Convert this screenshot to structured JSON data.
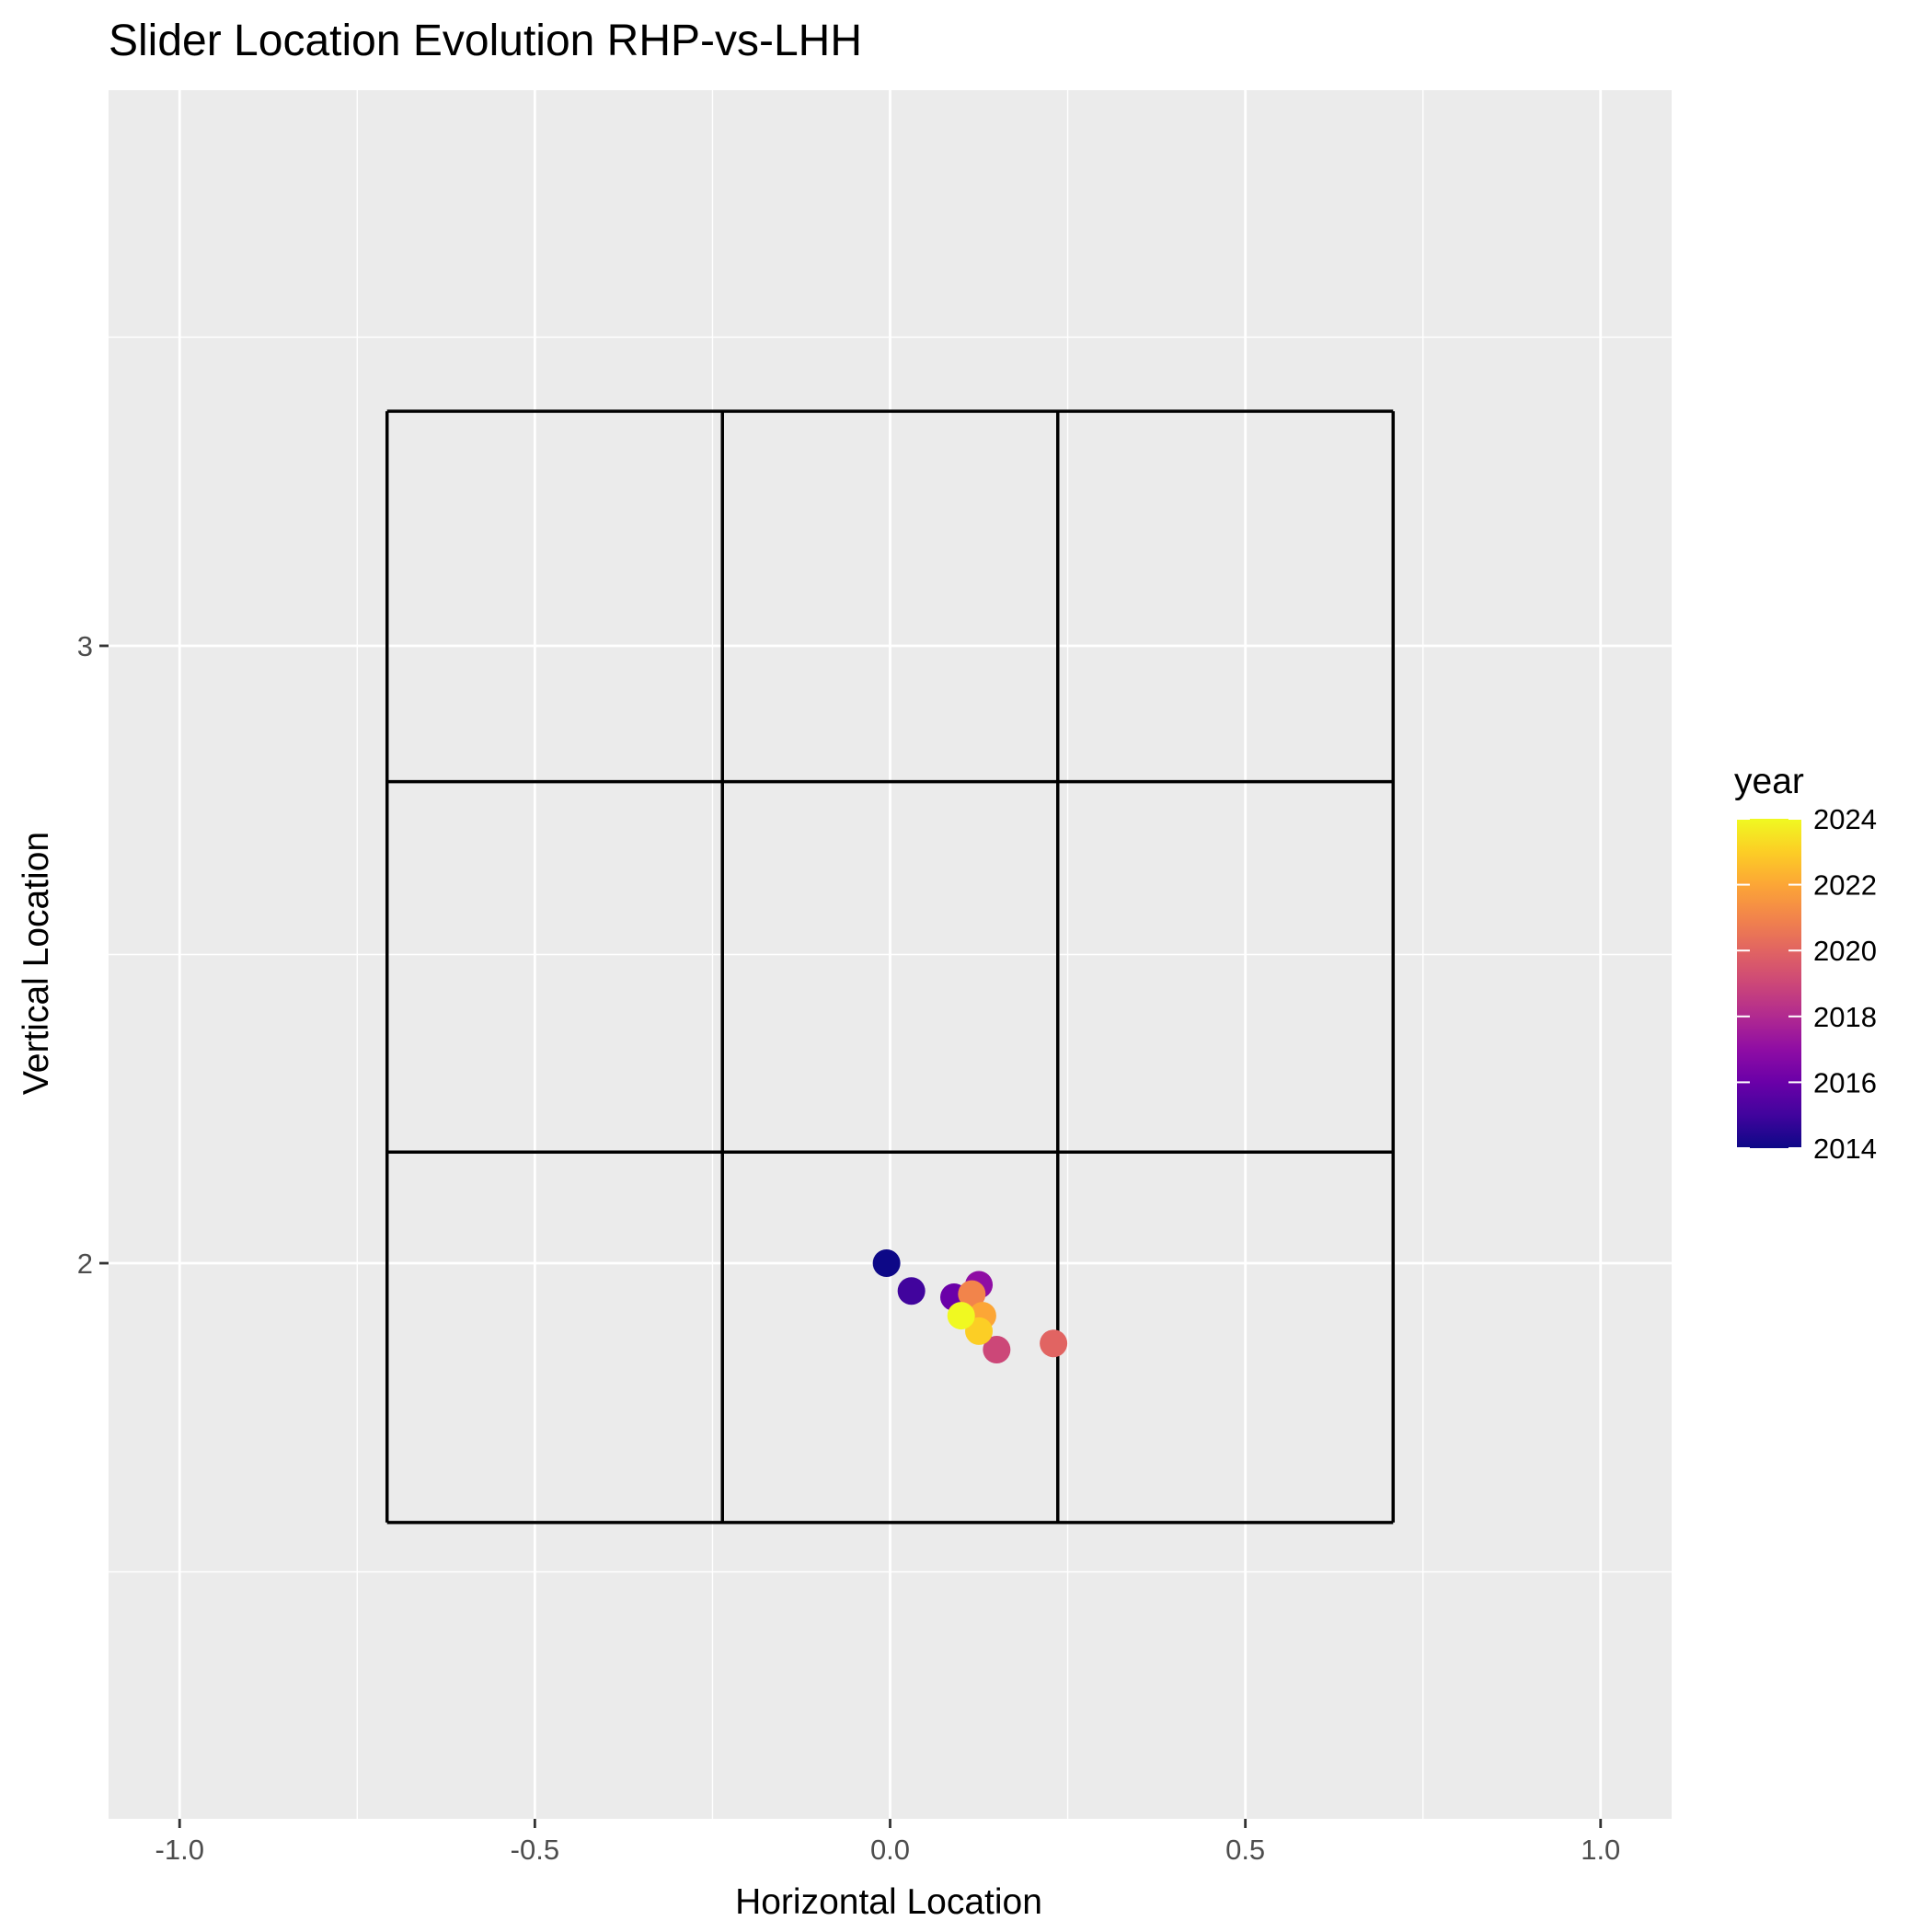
{
  "chart_data": {
    "type": "scatter",
    "title": "Slider Location Evolution RHP-vs-LHH",
    "xlabel": "Horizontal Location",
    "ylabel": "Vertical Location",
    "xlim": [
      -1.1,
      1.1
    ],
    "ylim": [
      1.1,
      3.9
    ],
    "x_ticks": [
      -1.0,
      -0.5,
      0.0,
      0.5,
      1.0
    ],
    "x_tick_labels": [
      "-1.0",
      "-0.5",
      "0.0",
      "0.5",
      "1.0"
    ],
    "y_ticks": [
      2,
      3
    ],
    "y_tick_labels": [
      "2",
      "3"
    ],
    "grid": true,
    "background": "#ebebeb",
    "strike_zone": {
      "x_bounds": [
        -0.708,
        -0.236,
        0.236,
        0.708
      ],
      "y_bounds": [
        1.58,
        2.18,
        2.78,
        3.38
      ],
      "color": "#000000"
    },
    "series": [
      {
        "points": [
          {
            "year": 2014,
            "x": -0.005,
            "y": 2.0,
            "color": "#0d0887"
          },
          {
            "year": 2015,
            "x": 0.03,
            "y": 1.955,
            "color": "#41049d"
          },
          {
            "year": 2016,
            "x": 0.09,
            "y": 1.945,
            "color": "#6a00a8"
          },
          {
            "year": 2017,
            "x": 0.125,
            "y": 1.965,
            "color": "#8f0da4"
          },
          {
            "year": 2018,
            "x": 0.15,
            "y": 1.86,
            "color": "#cc4778"
          },
          {
            "year": 2020,
            "x": 0.23,
            "y": 1.87,
            "color": "#e16462"
          },
          {
            "year": 2021,
            "x": 0.115,
            "y": 1.95,
            "color": "#f2844b"
          },
          {
            "year": 2022,
            "x": 0.13,
            "y": 1.915,
            "color": "#fca636"
          },
          {
            "year": 2023,
            "x": 0.125,
            "y": 1.89,
            "color": "#fcce25"
          },
          {
            "year": 2024,
            "x": 0.1,
            "y": 1.915,
            "color": "#f0f921"
          }
        ]
      }
    ],
    "legend": {
      "title": "year",
      "position": "right",
      "range": [
        2014,
        2024
      ],
      "breaks": [
        2014,
        2016,
        2018,
        2020,
        2022,
        2024
      ],
      "break_labels": [
        "2014",
        "2016",
        "2018",
        "2020",
        "2022",
        "2024"
      ],
      "colorscale": "plasma",
      "stops": [
        "#0d0887",
        "#41049d",
        "#6a00a8",
        "#8f0da4",
        "#b12a90",
        "#cc4778",
        "#e16462",
        "#f2844b",
        "#fca636",
        "#fcce25",
        "#f0f921"
      ]
    }
  }
}
